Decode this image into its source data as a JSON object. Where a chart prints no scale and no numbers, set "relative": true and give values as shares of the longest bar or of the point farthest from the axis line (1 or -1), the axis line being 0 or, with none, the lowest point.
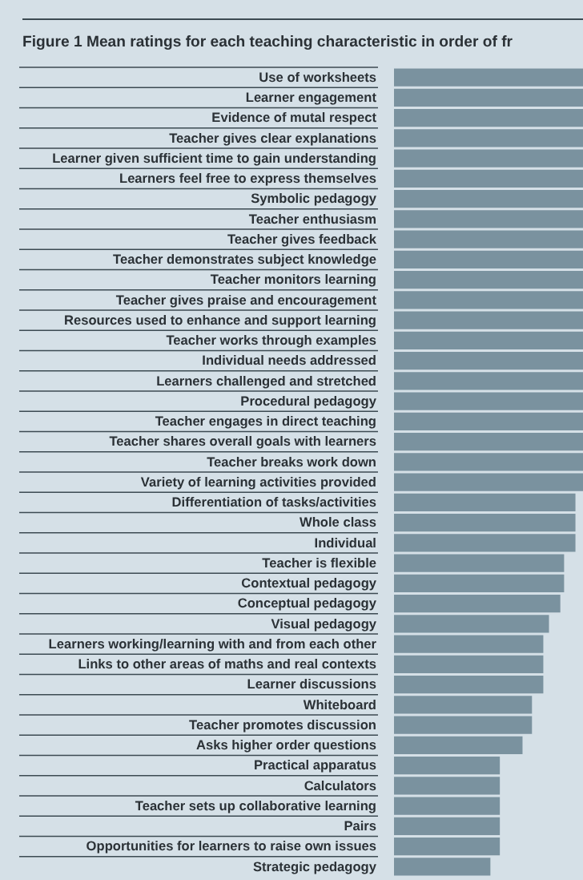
{
  "chart_data": {
    "type": "bar",
    "orientation": "horizontal",
    "relative": true,
    "color": "#7a929f",
    "title": "Figure 1   Mean ratings for each teaching characteristic in order of fr",
    "categories": [
      "Use of worksheets",
      "Learner engagement",
      "Evidence of mutal respect",
      "Teacher gives clear explanations",
      "Learner given sufficient time to gain understanding",
      "Learners feel free to express themselves",
      "Symbolic pedagogy",
      "Teacher enthusiasm",
      "Teacher gives feedback",
      "Teacher demonstrates subject knowledge",
      "Teacher monitors learning",
      "Teacher gives praise and encouragement",
      "Resources used to enhance and support learning",
      "Teacher works through examples",
      "Individual needs addressed",
      "Learners challenged and stretched",
      "Procedural pedagogy",
      "Teacher engages in direct teaching",
      "Teacher shares overall goals with learners",
      "Teacher breaks work down",
      "Variety of learning activities provided",
      "Differentiation of tasks/activities",
      "Whole class",
      "Individual",
      "Teacher is flexible",
      "Contextual pedagogy",
      "Conceptual pedagogy",
      "Visual pedagogy",
      "Learners working/learning with and from each other",
      "Links to other areas of maths and real contexts",
      "Learner discussions",
      "Whiteboard",
      "Teacher promotes discussion",
      "Asks higher order questions",
      "Practical apparatus",
      "Calculators",
      "Teacher sets up collaborative learning",
      "Pairs",
      "Opportunities for learners to raise own issues",
      "Strategic pedagogy"
    ],
    "values": [
      1,
      1,
      1,
      1,
      1,
      1,
      1,
      1,
      1,
      1,
      1,
      1,
      1,
      1,
      1,
      1,
      1,
      1,
      1,
      1,
      1,
      0.96,
      0.96,
      0.96,
      0.9,
      0.9,
      0.88,
      0.82,
      0.79,
      0.79,
      0.79,
      0.73,
      0.73,
      0.68,
      0.56,
      0.56,
      0.56,
      0.56,
      0.56,
      0.51
    ]
  }
}
